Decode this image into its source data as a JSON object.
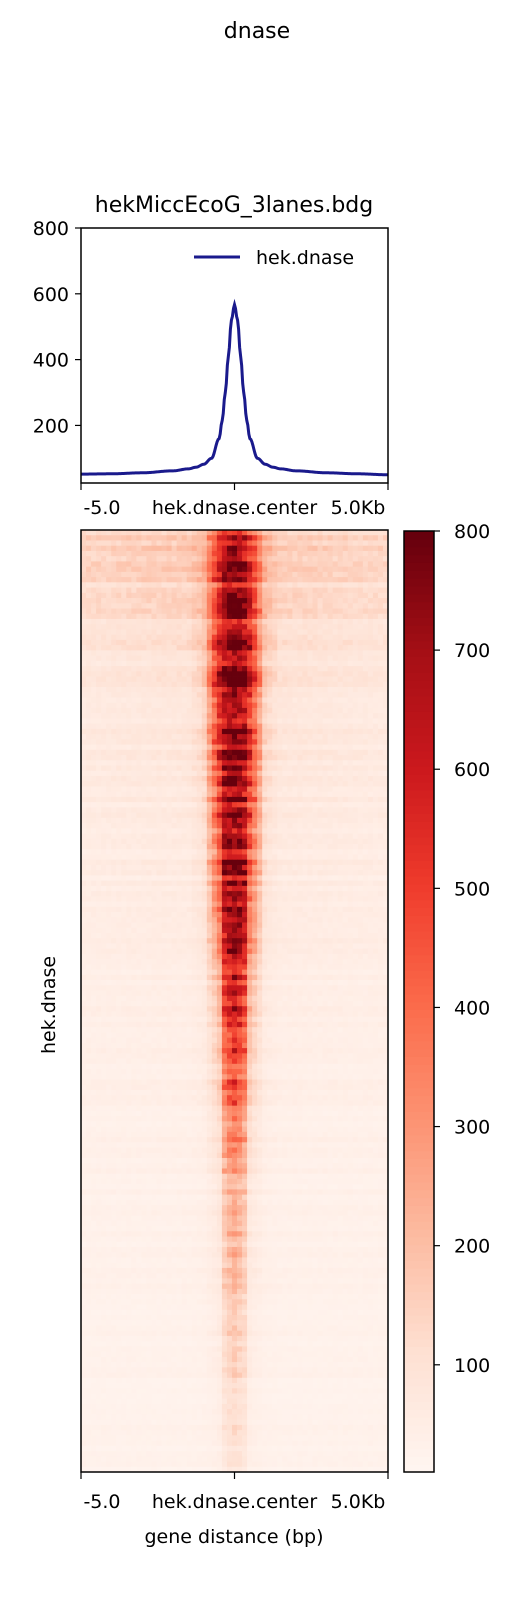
{
  "figure": {
    "title": "dnase"
  },
  "chart_data": [
    {
      "type": "line",
      "title": "hekMiccEcoG_3lanes.bdg",
      "x_tick_labels": [
        "-5.0",
        "hek.dnase.center",
        "5.0Kb"
      ],
      "xlim": [
        -5000,
        5000
      ],
      "ylim": [
        25,
        800
      ],
      "y_ticks": [
        200,
        400,
        600,
        800
      ],
      "legend_position": "top-right",
      "grid": false,
      "series": [
        {
          "name": "hek.dnase",
          "color": "#1a1a8c",
          "x": [
            -5000,
            -4000,
            -3000,
            -2000,
            -1500,
            -1250,
            -1000,
            -750,
            -500,
            -400,
            -300,
            -200,
            -100,
            0,
            100,
            200,
            300,
            400,
            500,
            750,
            1000,
            1250,
            1500,
            2000,
            3000,
            4000,
            5000
          ],
          "y": [
            52,
            53,
            56,
            62,
            68,
            73,
            82,
            100,
            160,
            215,
            300,
            410,
            520,
            567,
            520,
            410,
            300,
            215,
            160,
            100,
            82,
            73,
            68,
            62,
            56,
            53,
            50
          ]
        }
      ]
    },
    {
      "type": "heatmap",
      "ylabel": "hek.dnase",
      "xlabel": "gene distance (bp)",
      "x_tick_labels": [
        "-5.0",
        "hek.dnase.center",
        "5.0Kb"
      ],
      "colormap": "Reds",
      "colorbar": {
        "min": 10,
        "max": 800,
        "ticks": [
          100,
          200,
          300,
          400,
          500,
          600,
          700,
          800
        ]
      },
      "row_profile": {
        "rows_sorted_by_signal": "descending",
        "x": [
          -5000,
          -1500,
          -1000,
          -500,
          -300,
          0,
          300,
          500,
          1000,
          1500,
          5000
        ],
        "rows": [
          {
            "position": 0.0,
            "values": [
              150,
              180,
              230,
              520,
              640,
              700,
              640,
              520,
              230,
              170,
              140
            ]
          },
          {
            "position": 0.15,
            "values": [
              70,
              90,
              150,
              600,
              720,
              760,
              720,
              600,
              150,
              90,
              70
            ]
          },
          {
            "position": 0.35,
            "values": [
              50,
              60,
              90,
              420,
              690,
              730,
              690,
              420,
              90,
              60,
              50
            ]
          },
          {
            "position": 0.5,
            "values": [
              40,
              45,
              60,
              200,
              520,
              620,
              520,
              200,
              60,
              45,
              40
            ]
          },
          {
            "position": 0.7,
            "values": [
              30,
              32,
              38,
              70,
              200,
              260,
              200,
              70,
              38,
              32,
              30
            ]
          },
          {
            "position": 1.0,
            "values": [
              25,
              25,
              27,
              35,
              70,
              90,
              70,
              35,
              27,
              25,
              25
            ]
          }
        ]
      }
    }
  ]
}
